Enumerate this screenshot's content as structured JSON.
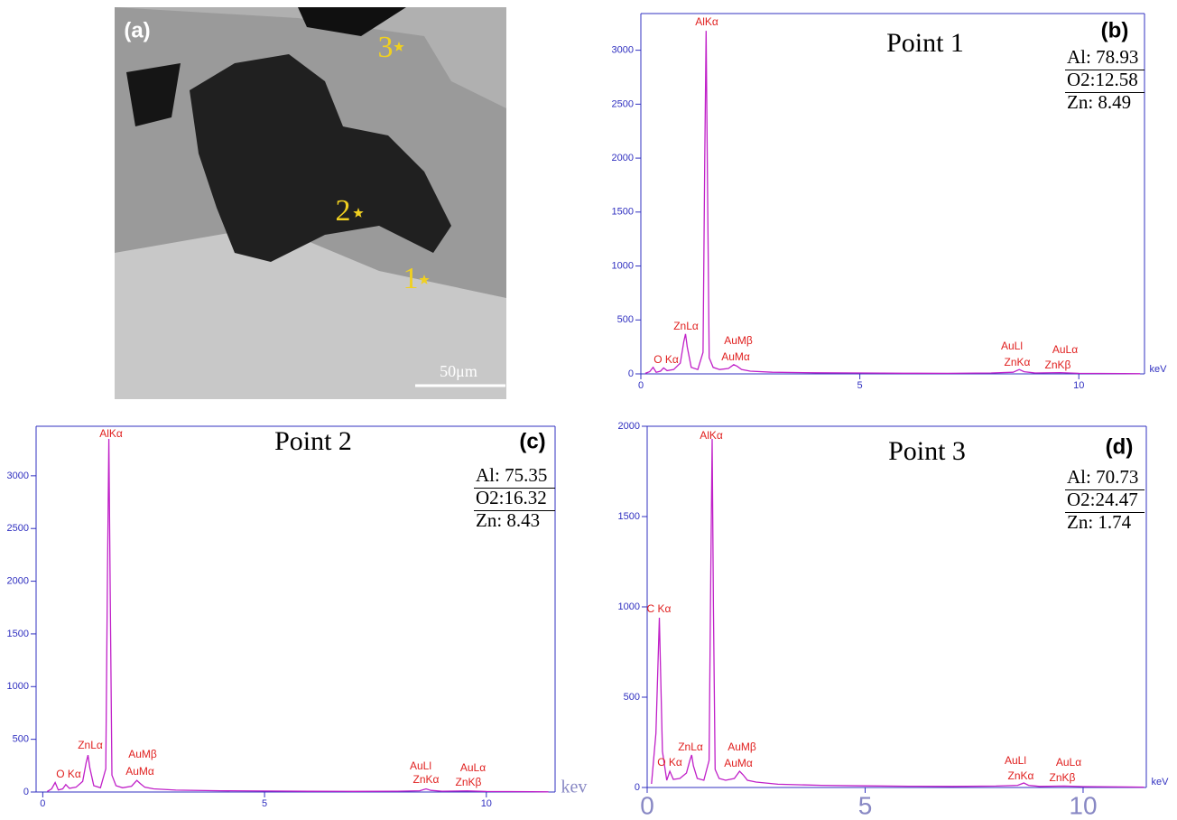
{
  "image": {
    "label": "(a)",
    "points": [
      "1",
      "2",
      "3"
    ],
    "scale_bar": "50μm"
  },
  "chart_data": [
    {
      "type": "line",
      "title": "Point 1",
      "panel": "(b)",
      "x_unit": "keV",
      "composition": [
        "Al: 78.93",
        "O2:12.58",
        "Zn: 8.49"
      ],
      "annotations": [
        "AlKα",
        "ZnLα",
        "O Kα",
        "AuMβ",
        "AuMα",
        "AuLl",
        "ZnKα",
        "AuLα",
        "ZnKβ"
      ],
      "x": [
        0.1,
        0.2,
        0.28,
        0.35,
        0.45,
        0.52,
        0.6,
        0.75,
        0.9,
        0.98,
        1.02,
        1.06,
        1.15,
        1.3,
        1.42,
        1.46,
        1.49,
        1.52,
        1.56,
        1.65,
        1.8,
        2.0,
        2.12,
        2.2,
        2.3,
        2.5,
        3,
        4,
        5,
        6,
        7,
        8,
        8.5,
        8.64,
        8.75,
        9,
        9.57,
        10,
        11,
        11.4
      ],
      "series": [
        {
          "color": "#c020c8",
          "values": [
            5,
            20,
            60,
            15,
            25,
            55,
            30,
            40,
            100,
            300,
            370,
            250,
            60,
            40,
            200,
            2000,
            3180,
            1800,
            150,
            60,
            40,
            50,
            85,
            70,
            40,
            25,
            15,
            10,
            8,
            6,
            5,
            8,
            15,
            40,
            20,
            8,
            12,
            5,
            3,
            2
          ]
        }
      ],
      "xlim": [
        0,
        11.5
      ],
      "ylim": [
        0,
        3340
      ],
      "xticks": [
        0,
        5,
        10
      ],
      "yticks": [
        0,
        500,
        1000,
        1500,
        2000,
        2500,
        3000
      ]
    },
    {
      "type": "line",
      "title": "Point 2",
      "panel": "(c)",
      "x_unit": "kev",
      "composition": [
        "Al: 75.35",
        "O2:16.32",
        "Zn: 8.43"
      ],
      "annotations": [
        "AlKα",
        "ZnLα",
        "O Kα",
        "AuMβ",
        "AuMα",
        "AuLl",
        "ZnKα",
        "AuLα",
        "ZnKβ"
      ],
      "x": [
        0.1,
        0.2,
        0.28,
        0.35,
        0.45,
        0.52,
        0.6,
        0.75,
        0.9,
        0.98,
        1.02,
        1.06,
        1.15,
        1.3,
        1.42,
        1.46,
        1.49,
        1.52,
        1.56,
        1.65,
        1.8,
        2.0,
        2.12,
        2.2,
        2.3,
        2.5,
        3,
        4,
        5,
        6,
        7,
        8,
        8.5,
        8.64,
        8.75,
        9,
        9.57,
        10,
        11,
        11.4
      ],
      "series": [
        {
          "color": "#c020c8",
          "values": [
            5,
            30,
            90,
            20,
            30,
            70,
            35,
            45,
            100,
            280,
            350,
            230,
            60,
            40,
            220,
            2100,
            3350,
            1900,
            160,
            60,
            40,
            55,
            110,
            80,
            45,
            30,
            18,
            12,
            9,
            7,
            6,
            8,
            12,
            30,
            15,
            8,
            10,
            5,
            3,
            2
          ]
        }
      ],
      "xlim": [
        -0.15,
        11.55
      ],
      "ylim": [
        0,
        3470
      ],
      "xticks": [
        0,
        5,
        10
      ],
      "yticks": [
        0,
        500,
        1000,
        1500,
        2000,
        2500,
        3000
      ]
    },
    {
      "type": "line",
      "title": "Point 3",
      "panel": "(d)",
      "x_unit": "keV",
      "composition": [
        "Al: 70.73",
        "O2:24.47",
        "Zn: 1.74"
      ],
      "annotations": [
        "AlKα",
        "C Kα",
        "O Kα",
        "ZnLα",
        "AuMβ",
        "AuMα",
        "AuLl",
        "ZnKα",
        "AuLα",
        "ZnKβ"
      ],
      "x": [
        0.1,
        0.2,
        0.28,
        0.35,
        0.45,
        0.52,
        0.6,
        0.75,
        0.9,
        0.98,
        1.02,
        1.06,
        1.15,
        1.3,
        1.42,
        1.46,
        1.49,
        1.52,
        1.56,
        1.65,
        1.8,
        2.0,
        2.12,
        2.2,
        2.3,
        2.5,
        3,
        4,
        5,
        6,
        7,
        8,
        8.5,
        8.64,
        8.75,
        9,
        9.57,
        10,
        11,
        11.4
      ],
      "series": [
        {
          "color": "#c020c8",
          "values": [
            20,
            300,
            940,
            200,
            40,
            90,
            45,
            50,
            80,
            150,
            180,
            120,
            50,
            40,
            150,
            1200,
            1930,
            1000,
            100,
            50,
            40,
            50,
            90,
            70,
            40,
            30,
            18,
            12,
            9,
            7,
            6,
            8,
            12,
            25,
            12,
            6,
            8,
            5,
            3,
            2
          ]
        }
      ],
      "xlim": [
        0,
        11.45
      ],
      "ylim": [
        0,
        2000
      ],
      "xticks": [
        0,
        5,
        10
      ],
      "yticks": [
        0,
        500,
        1000,
        1500,
        2000
      ]
    }
  ]
}
